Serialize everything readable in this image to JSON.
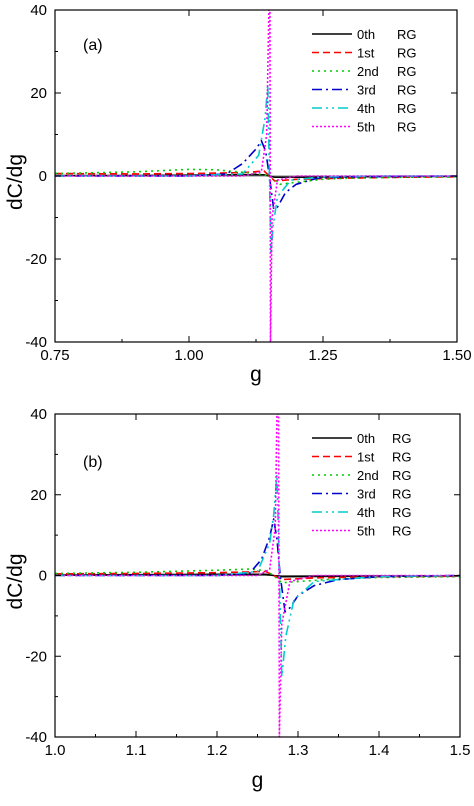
{
  "chart_data": [
    {
      "type": "line",
      "panel_label": "(a)",
      "xlabel": "g",
      "ylabel": "dC/dg",
      "xlim": [
        0.75,
        1.5
      ],
      "ylim": [
        -40,
        40
      ],
      "xticks": [
        0.75,
        1.0,
        1.25,
        1.5
      ],
      "xtick_labels": [
        "0.75",
        "1.00",
        "1.25",
        "1.50"
      ],
      "yticks": [
        -40,
        -20,
        0,
        20,
        40
      ],
      "ytick_labels": [
        "-40",
        "-20",
        "0",
        "20",
        "40"
      ],
      "legend_position": "top-right",
      "grid": false,
      "series": [
        {
          "name": "0th RG",
          "legend_parts": [
            "0th",
            "RG"
          ],
          "color": "#000000",
          "dash": "",
          "x": [
            0.75,
            0.9,
            1.0,
            1.1,
            1.14,
            1.15,
            1.16,
            1.2,
            1.3,
            1.4,
            1.5
          ],
          "y": [
            0.1,
            0.1,
            0.2,
            0.3,
            0.3,
            0.0,
            -0.3,
            -0.3,
            -0.2,
            -0.1,
            -0.1
          ]
        },
        {
          "name": "1st RG",
          "legend_parts": [
            "1st",
            "RG"
          ],
          "color": "#ff0000",
          "dash": "7,4",
          "x": [
            0.75,
            0.9,
            1.0,
            1.1,
            1.14,
            1.15,
            1.16,
            1.2,
            1.3,
            1.4,
            1.5
          ],
          "y": [
            0.6,
            0.5,
            0.6,
            0.8,
            1.2,
            0.0,
            -1.2,
            -0.8,
            -0.5,
            -0.3,
            -0.2
          ]
        },
        {
          "name": "2nd RG",
          "legend_parts": [
            "2nd",
            "RG"
          ],
          "color": "#00cc00",
          "dash": "2,4",
          "x": [
            0.75,
            0.9,
            1.0,
            1.05,
            1.1,
            1.13,
            1.15,
            1.17,
            1.2,
            1.25,
            1.3,
            1.4,
            1.5
          ],
          "y": [
            0.6,
            1.0,
            1.6,
            1.5,
            0.9,
            0.5,
            0.0,
            -2.0,
            -1.5,
            -0.8,
            -0.5,
            -0.3,
            -0.2
          ]
        },
        {
          "name": "3rd RG",
          "legend_parts": [
            "3rd",
            "RG"
          ],
          "color": "#0000cc",
          "dash": "10,4,2,4",
          "x": [
            0.75,
            1.0,
            1.07,
            1.1,
            1.125,
            1.135,
            1.143,
            1.15,
            1.158,
            1.165,
            1.18,
            1.2,
            1.24,
            1.3,
            1.4,
            1.5
          ],
          "y": [
            0.0,
            0.0,
            0.5,
            3.0,
            6.5,
            8.5,
            6.0,
            0.0,
            -8.0,
            -7.5,
            -4.0,
            -2.0,
            -0.5,
            -0.2,
            -0.1,
            0.0
          ]
        },
        {
          "name": "4th RG",
          "legend_parts": [
            "4th",
            "RG"
          ],
          "color": "#00cccc",
          "dash": "10,4,2,4,2,4",
          "x": [
            0.75,
            1.0,
            1.1,
            1.13,
            1.142,
            1.147,
            1.15,
            1.153,
            1.157,
            1.165,
            1.19,
            1.25,
            1.35,
            1.5
          ],
          "y": [
            0.0,
            0.0,
            0.5,
            5.0,
            14.0,
            22.0,
            0.0,
            -19.0,
            -12.0,
            -5.0,
            -1.0,
            -0.2,
            0.0,
            0.0
          ]
        },
        {
          "name": "5th RG",
          "legend_parts": [
            "5th",
            "RG"
          ],
          "color": "#ff00ff",
          "dash": "2,2",
          "x": [
            0.75,
            1.1,
            1.135,
            1.145,
            1.149,
            1.151,
            1.152,
            1.155,
            1.165,
            1.2,
            1.5
          ],
          "y": [
            0.0,
            0.0,
            1.0,
            10.0,
            40.0,
            40.0,
            -40.0,
            -10.0,
            -1.0,
            0.0,
            0.0
          ]
        }
      ]
    },
    {
      "type": "line",
      "panel_label": "(b)",
      "xlabel": "g",
      "ylabel": "dC/dg",
      "xlim": [
        1.0,
        1.5
      ],
      "ylim": [
        -40,
        40
      ],
      "xticks": [
        1.0,
        1.1,
        1.2,
        1.3,
        1.4,
        1.5
      ],
      "xtick_labels": [
        "1.0",
        "1.1",
        "1.2",
        "1.3",
        "1.4",
        "1.5"
      ],
      "yticks": [
        -40,
        -20,
        0,
        20,
        40
      ],
      "ytick_labels": [
        "-40",
        "-20",
        "0",
        "20",
        "40"
      ],
      "legend_position": "top-right",
      "grid": false,
      "series": [
        {
          "name": "0th RG",
          "legend_parts": [
            "0th",
            "RG"
          ],
          "color": "#000000",
          "dash": "",
          "x": [
            1.0,
            1.1,
            1.2,
            1.26,
            1.27,
            1.28,
            1.35,
            1.5
          ],
          "y": [
            0.1,
            0.2,
            0.3,
            0.3,
            0.0,
            -0.3,
            -0.2,
            -0.1
          ]
        },
        {
          "name": "1st RG",
          "legend_parts": [
            "1st",
            "RG"
          ],
          "color": "#ff0000",
          "dash": "7,4",
          "x": [
            1.0,
            1.1,
            1.2,
            1.26,
            1.27,
            1.28,
            1.32,
            1.4,
            1.5
          ],
          "y": [
            0.4,
            0.5,
            0.7,
            1.0,
            0.0,
            -1.0,
            -0.6,
            -0.3,
            -0.2
          ]
        },
        {
          "name": "2nd RG",
          "legend_parts": [
            "2nd",
            "RG"
          ],
          "color": "#00cc00",
          "dash": "2,4",
          "x": [
            1.0,
            1.1,
            1.2,
            1.24,
            1.26,
            1.27,
            1.28,
            1.3,
            1.35,
            1.4,
            1.5
          ],
          "y": [
            0.5,
            0.8,
            1.3,
            1.6,
            1.2,
            0.0,
            -1.8,
            -1.5,
            -0.8,
            -0.5,
            -0.3
          ]
        },
        {
          "name": "3rd RG",
          "legend_parts": [
            "3rd",
            "RG"
          ],
          "color": "#0000cc",
          "dash": "10,4,2,4",
          "x": [
            1.0,
            1.2,
            1.24,
            1.255,
            1.265,
            1.27,
            1.274,
            1.278,
            1.284,
            1.29,
            1.3,
            1.32,
            1.35,
            1.4,
            1.5
          ],
          "y": [
            0.0,
            0.0,
            0.5,
            4.0,
            9.5,
            14.0,
            9.0,
            0.0,
            -9.0,
            -8.0,
            -5.0,
            -2.5,
            -1.0,
            -0.3,
            0.0
          ]
        },
        {
          "name": "4th RG",
          "legend_parts": [
            "4th",
            "RG"
          ],
          "color": "#00cccc",
          "dash": "10,4,2,4,2,4",
          "x": [
            1.0,
            1.2,
            1.25,
            1.265,
            1.27,
            1.274,
            1.277,
            1.28,
            1.285,
            1.295,
            1.32,
            1.4,
            1.5
          ],
          "y": [
            0.0,
            0.0,
            1.0,
            8.0,
            15.0,
            25.0,
            0.0,
            -25.0,
            -15.0,
            -6.0,
            -1.5,
            -0.2,
            0.0
          ]
        },
        {
          "name": "5th RG",
          "legend_parts": [
            "5th",
            "RG"
          ],
          "color": "#ff00ff",
          "dash": "2,2",
          "x": [
            1.0,
            1.25,
            1.265,
            1.272,
            1.274,
            1.276,
            1.277,
            1.28,
            1.29,
            1.32,
            1.5
          ],
          "y": [
            0.0,
            0.0,
            1.5,
            12.0,
            40.0,
            40.0,
            -40.0,
            -12.0,
            -1.5,
            0.0,
            0.0
          ]
        }
      ]
    }
  ]
}
